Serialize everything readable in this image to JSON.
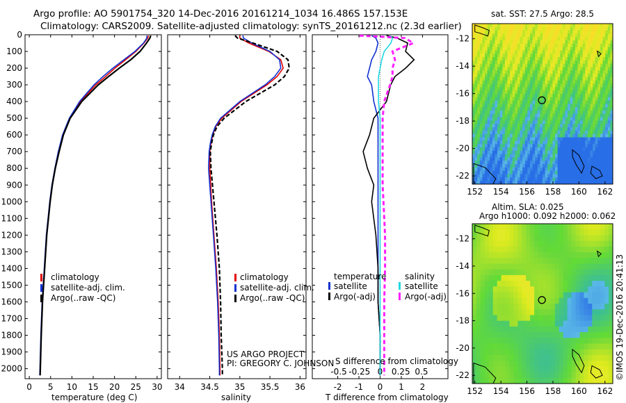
{
  "titles": {
    "line1": "Argo profile: AO 5901754_320 14-Dec-2016 20161214_1034 16.486S 157.153E",
    "line2": "Climatology: CARS2009. Satellite-adjusted climatology: synTS_20161212.nc (2.3d earlier)"
  },
  "credit": {
    "line1": "US ARGO PROJECT",
    "line2": "PI: GREGORY C. JOHNSON"
  },
  "side_label": "©IMOS 19-Dec-2016 20:41:13",
  "maps": {
    "sst_title": "sat. SST: 27.5 Argo: 28.5",
    "sla_title1": "Altim. SLA: 0.025",
    "sla_title2": "Argo h1000: 0.092 h2000: 0.062",
    "x_ticks": [
      "152",
      "154",
      "156",
      "158",
      "160",
      "162"
    ],
    "y_ticks": [
      "-12",
      "-14",
      "-16",
      "-18",
      "-20",
      "-22"
    ],
    "x_values": [
      152,
      154,
      156,
      158,
      160,
      162
    ],
    "y_values": [
      -12,
      -14,
      -16,
      -18,
      -20,
      -22
    ],
    "lon_range": [
      151.8,
      162.6
    ],
    "lat_range": [
      -22.6,
      -10.9
    ],
    "float_position": {
      "lon": 157.153,
      "lat": -16.486
    }
  },
  "colors": {
    "climatology": "#e00000",
    "satellite": "#1030d0",
    "argo": "#000000",
    "satellite_salinity": "#20d8e0",
    "argo_salinity": "#ff20ff",
    "diff_salinity": "#ff20ff"
  },
  "chart_data": [
    {
      "type": "line",
      "xlabel": "temperature (deg C)",
      "ylabel": "",
      "xlim": [
        -1,
        31
      ],
      "ylim": [
        2060,
        0
      ],
      "x_ticks": [
        0,
        5,
        10,
        15,
        20,
        25,
        30
      ],
      "y_ticks": [
        0,
        100,
        200,
        300,
        400,
        500,
        600,
        700,
        800,
        900,
        1000,
        1100,
        1200,
        1300,
        1400,
        1500,
        1600,
        1700,
        1800,
        1900,
        2000
      ],
      "legend": [
        "climatology",
        "satellite-adj. clim.",
        "Argo(..raw -QC)"
      ],
      "depth": [
        5,
        20,
        50,
        100,
        150,
        200,
        250,
        300,
        400,
        500,
        600,
        700,
        800,
        900,
        1000,
        1200,
        1400,
        1600,
        1800,
        2000,
        2040
      ],
      "series": [
        {
          "name": "climatology",
          "values": [
            28.0,
            27.8,
            26.9,
            25.0,
            22.6,
            20.1,
            17.9,
            15.6,
            12.0,
            9.5,
            7.9,
            6.9,
            6.1,
            5.4,
            4.9,
            4.1,
            3.6,
            3.1,
            2.8,
            2.6,
            2.55
          ]
        },
        {
          "name": "satellite-adj. clim.",
          "values": [
            27.6,
            27.6,
            26.8,
            24.8,
            22.2,
            19.6,
            17.3,
            15.2,
            11.8,
            9.4,
            7.8,
            6.8,
            6.0,
            5.3,
            4.8,
            4.0,
            3.5,
            3.0,
            2.7,
            2.5,
            2.45
          ]
        },
        {
          "name": "Argo(..raw -QC)",
          "values": [
            28.5,
            28.3,
            27.5,
            26.0,
            23.8,
            21.1,
            18.6,
            16.2,
            12.3,
            9.6,
            8.0,
            7.0,
            6.1,
            5.4,
            4.9,
            4.1,
            3.6,
            3.1,
            2.8,
            2.6,
            2.55
          ]
        }
      ]
    },
    {
      "type": "line",
      "xlabel": "salinity",
      "ylabel": "",
      "xlim": [
        33.8,
        36.1
      ],
      "ylim": [
        2060,
        0
      ],
      "x_ticks": [
        34,
        34.5,
        35,
        35.5,
        36
      ],
      "x_tick_labels": [
        "34",
        "34.5",
        "35",
        "35.5",
        "36"
      ],
      "legend": [
        "climatology",
        "satellite-adj. clim.",
        "Argo(..raw -QC)"
      ],
      "depth": [
        5,
        20,
        50,
        100,
        150,
        200,
        250,
        300,
        400,
        500,
        550,
        600,
        650,
        700,
        800,
        1000,
        1200,
        1400,
        1600,
        1800,
        2000,
        2040
      ],
      "series": [
        {
          "name": "climatology",
          "values": [
            35.0,
            35.0,
            35.15,
            35.48,
            35.68,
            35.72,
            35.62,
            35.45,
            35.02,
            34.7,
            34.6,
            34.55,
            34.52,
            34.5,
            34.5,
            34.53,
            34.57,
            34.61,
            34.64,
            34.66,
            34.67,
            34.67
          ]
        },
        {
          "name": "satellite-adj. clim.",
          "values": [
            35.05,
            35.06,
            35.2,
            35.5,
            35.66,
            35.68,
            35.58,
            35.42,
            35.0,
            34.68,
            34.59,
            34.54,
            34.51,
            34.49,
            34.48,
            34.52,
            34.56,
            34.6,
            34.63,
            34.65,
            34.66,
            34.66
          ]
        },
        {
          "name": "Argo(..raw -QC)",
          "values": [
            34.92,
            34.96,
            35.22,
            35.62,
            35.8,
            35.82,
            35.74,
            35.58,
            35.1,
            34.74,
            34.62,
            34.56,
            34.53,
            34.51,
            34.52,
            34.57,
            34.62,
            34.66,
            34.68,
            34.69,
            34.71,
            34.71
          ]
        }
      ]
    },
    {
      "type": "line",
      "xlabel": "T difference from climatology",
      "secondary_xlabel": "S difference from climatology",
      "xlim": [
        -3.2,
        3.2
      ],
      "ylim": [
        2060,
        0
      ],
      "x_ticks": [
        -2,
        -1,
        0,
        1,
        2
      ],
      "secondary_x_ticks": [
        -0.5,
        -0.25,
        0,
        0.25,
        0.5
      ],
      "secondary_x_tick_labels": [
        "-0.5",
        "-0.25",
        "0",
        "0.25",
        "0.5"
      ],
      "legend_temperature": {
        "title": "temperature",
        "items": [
          "satellite",
          "Argo(-adj)"
        ]
      },
      "legend_salinity": {
        "title": "salinity",
        "items": [
          "satellite",
          "Argo(-adj)"
        ]
      },
      "depth": [
        5,
        20,
        50,
        100,
        150,
        200,
        250,
        300,
        400,
        500,
        600,
        700,
        800,
        900,
        1000,
        1200,
        1400,
        1600,
        1800,
        2000,
        2040
      ],
      "series": [
        {
          "name": "temperature satellite",
          "values": [
            -0.4,
            -0.2,
            -0.1,
            -0.2,
            -0.4,
            -0.5,
            -0.6,
            -0.4,
            -0.3,
            -0.1,
            -0.1,
            -0.1,
            -0.1,
            -0.1,
            -0.1,
            -0.1,
            -0.1,
            -0.1,
            0.0,
            0.0,
            0.0
          ]
        },
        {
          "name": "temperature Argo(-adj)",
          "values": [
            0.3,
            0.8,
            1.3,
            1.2,
            1.6,
            1.2,
            0.7,
            0.5,
            0.3,
            -0.3,
            -0.5,
            -0.8,
            -0.6,
            -0.3,
            -0.4,
            -0.2,
            -0.1,
            -0.1,
            0.0,
            0.0,
            0.0
          ]
        },
        {
          "name": "salinity satellite",
          "values": [
            0.12,
            0.15,
            0.13,
            0.05,
            0.02,
            0.0,
            -0.02,
            -0.02,
            -0.02,
            0.0,
            0.0,
            0.0,
            0.0,
            0.0,
            0.0,
            0.0,
            0.0,
            0.0,
            0.0,
            0.0,
            0.0
          ]
        },
        {
          "name": "salinity Argo(-adj)",
          "values": [
            -0.25,
            0.3,
            0.4,
            0.15,
            0.18,
            0.15,
            0.15,
            0.12,
            0.05,
            0.03,
            0.03,
            0.03,
            0.03,
            0.03,
            0.04,
            0.06,
            0.06,
            0.05,
            0.05,
            0.05,
            0.05
          ]
        }
      ]
    }
  ]
}
